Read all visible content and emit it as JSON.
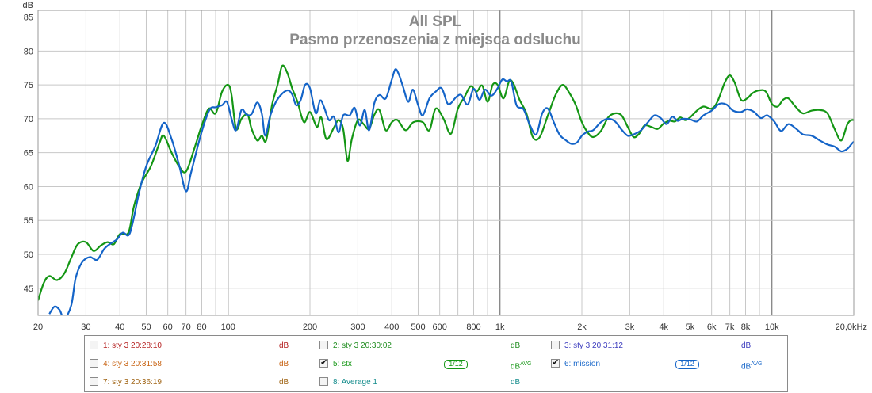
{
  "chart_data": {
    "type": "line",
    "title": "All SPL",
    "subtitle": "Pasmo przenoszenia z miejsca odsluchu",
    "ylabel": "dB",
    "xlabel": "",
    "x_scale": "log",
    "xlim": [
      20,
      20000
    ],
    "ylim": [
      41,
      86
    ],
    "grid": true,
    "x_ticks": [
      20,
      30,
      40,
      50,
      60,
      70,
      80,
      100,
      200,
      300,
      400,
      500,
      600,
      800,
      1000,
      2000,
      3000,
      4000,
      5000,
      6000,
      7000,
      8000,
      10000,
      20000
    ],
    "x_tick_labels": [
      "20",
      "30",
      "40",
      "50",
      "60",
      "70",
      "80",
      "100",
      "200",
      "300",
      "400",
      "500",
      "600",
      "800",
      "1k",
      "2k",
      "3k",
      "4k",
      "5k",
      "6k",
      "7k",
      "8k",
      "10k",
      "20,0kHz"
    ],
    "y_ticks": [
      45,
      50,
      55,
      60,
      65,
      70,
      75,
      80,
      85
    ],
    "y_tick_labels": [
      "45",
      "50",
      "55",
      "60",
      "65",
      "70",
      "75",
      "80",
      "85"
    ],
    "series": [
      {
        "name": "5: stx",
        "color": "#149614",
        "points": [
          [
            20,
            43.2
          ],
          [
            21,
            45.8
          ],
          [
            22,
            46.8
          ],
          [
            23.5,
            46.2
          ],
          [
            25,
            47.2
          ],
          [
            26.5,
            49.5
          ],
          [
            28,
            51.5
          ],
          [
            30,
            51.8
          ],
          [
            32,
            50.5
          ],
          [
            34,
            51.3
          ],
          [
            36,
            51.8
          ],
          [
            38,
            51.5
          ],
          [
            40,
            53
          ],
          [
            43,
            53.2
          ],
          [
            45,
            57
          ],
          [
            48,
            60.5
          ],
          [
            52,
            63
          ],
          [
            56,
            66.5
          ],
          [
            58,
            67.5
          ],
          [
            62,
            65
          ],
          [
            66,
            63
          ],
          [
            70,
            62.2
          ],
          [
            75,
            65.5
          ],
          [
            80,
            69
          ],
          [
            85,
            71.5
          ],
          [
            90,
            70.8
          ],
          [
            95,
            74
          ],
          [
            100,
            75
          ],
          [
            103,
            73.5
          ],
          [
            107,
            68.5
          ],
          [
            112,
            70
          ],
          [
            118,
            70.6
          ],
          [
            122,
            68.5
          ],
          [
            128,
            66.8
          ],
          [
            133,
            67.5
          ],
          [
            138,
            66.8
          ],
          [
            145,
            72
          ],
          [
            152,
            75
          ],
          [
            158,
            77.8
          ],
          [
            165,
            76.8
          ],
          [
            172,
            74.5
          ],
          [
            180,
            72.5
          ],
          [
            190,
            69.5
          ],
          [
            200,
            71
          ],
          [
            212,
            68.8
          ],
          [
            220,
            70.2
          ],
          [
            230,
            67
          ],
          [
            245,
            68.7
          ],
          [
            255,
            69.8
          ],
          [
            265,
            68.5
          ],
          [
            275,
            63.8
          ],
          [
            285,
            67
          ],
          [
            300,
            69.8
          ],
          [
            315,
            69.2
          ],
          [
            330,
            68.5
          ],
          [
            345,
            70.6
          ],
          [
            360,
            71.3
          ],
          [
            380,
            68.3
          ],
          [
            400,
            69.5
          ],
          [
            420,
            69.8
          ],
          [
            450,
            68.3
          ],
          [
            480,
            69.5
          ],
          [
            520,
            69.5
          ],
          [
            550,
            68.3
          ],
          [
            580,
            71.5
          ],
          [
            620,
            70
          ],
          [
            660,
            67.8
          ],
          [
            700,
            71.5
          ],
          [
            740,
            73.2
          ],
          [
            780,
            74.8
          ],
          [
            820,
            74
          ],
          [
            860,
            74.9
          ],
          [
            900,
            72.5
          ],
          [
            940,
            75
          ],
          [
            980,
            75
          ],
          [
            1030,
            73
          ],
          [
            1080,
            75.5
          ],
          [
            1120,
            75.2
          ],
          [
            1180,
            72.8
          ],
          [
            1250,
            70.8
          ],
          [
            1320,
            67.3
          ],
          [
            1400,
            67.3
          ],
          [
            1500,
            70.5
          ],
          [
            1600,
            73.5
          ],
          [
            1700,
            75
          ],
          [
            1800,
            73.8
          ],
          [
            1900,
            72
          ],
          [
            2000,
            69.5
          ],
          [
            2100,
            68
          ],
          [
            2200,
            67.3
          ],
          [
            2350,
            68.2
          ],
          [
            2500,
            70.2
          ],
          [
            2650,
            70.8
          ],
          [
            2800,
            70.5
          ],
          [
            2950,
            68.8
          ],
          [
            3100,
            67.3
          ],
          [
            3250,
            67.8
          ],
          [
            3400,
            69
          ],
          [
            3600,
            68.8
          ],
          [
            3800,
            68.5
          ],
          [
            4000,
            69.3
          ],
          [
            4200,
            69.7
          ],
          [
            4400,
            69.6
          ],
          [
            4600,
            70.2
          ],
          [
            4800,
            69.8
          ],
          [
            5000,
            70.2
          ],
          [
            5300,
            71.2
          ],
          [
            5600,
            71.8
          ],
          [
            6000,
            71.5
          ],
          [
            6300,
            72.5
          ],
          [
            6700,
            75.3
          ],
          [
            7000,
            76.4
          ],
          [
            7300,
            75.3
          ],
          [
            7700,
            72.8
          ],
          [
            8100,
            73
          ],
          [
            8500,
            73.8
          ],
          [
            9000,
            74.2
          ],
          [
            9500,
            74
          ],
          [
            10000,
            72.2
          ],
          [
            10500,
            71.8
          ],
          [
            11000,
            72.8
          ],
          [
            11500,
            73
          ],
          [
            12200,
            71.8
          ],
          [
            13000,
            70.8
          ],
          [
            14000,
            71.2
          ],
          [
            15000,
            71.3
          ],
          [
            16000,
            70.8
          ],
          [
            17000,
            68.5
          ],
          [
            18000,
            66.8
          ],
          [
            19000,
            69.3
          ],
          [
            20000,
            69.8
          ],
          [
            21000,
            68.8
          ]
        ]
      },
      {
        "name": "6: mission",
        "color": "#1464c8",
        "points": [
          [
            22,
            41.2
          ],
          [
            23,
            42.3
          ],
          [
            24,
            41.8
          ],
          [
            25,
            40.5
          ],
          [
            26.5,
            42.5
          ],
          [
            27.5,
            46.5
          ],
          [
            29,
            48.8
          ],
          [
            31,
            49.6
          ],
          [
            33,
            49.2
          ],
          [
            35,
            50.8
          ],
          [
            37,
            51.6
          ],
          [
            39,
            52.2
          ],
          [
            41,
            53.2
          ],
          [
            43,
            52.8
          ],
          [
            44.5,
            54.5
          ],
          [
            47,
            59
          ],
          [
            50,
            63
          ],
          [
            54,
            66
          ],
          [
            58,
            69.4
          ],
          [
            62,
            67
          ],
          [
            66,
            63.2
          ],
          [
            70,
            59.3
          ],
          [
            73,
            62
          ],
          [
            78,
            66.5
          ],
          [
            82,
            69.5
          ],
          [
            86,
            71.5
          ],
          [
            90,
            71.7
          ],
          [
            95,
            72
          ],
          [
            99,
            72.5
          ],
          [
            103,
            70
          ],
          [
            107,
            68.3
          ],
          [
            112,
            71.3
          ],
          [
            117,
            70.6
          ],
          [
            122,
            70.7
          ],
          [
            128,
            72.4
          ],
          [
            133,
            70.8
          ],
          [
            137,
            67.5
          ],
          [
            143,
            70.5
          ],
          [
            150,
            72.5
          ],
          [
            158,
            73.7
          ],
          [
            166,
            74.2
          ],
          [
            172,
            73.6
          ],
          [
            178,
            72
          ],
          [
            185,
            72.8
          ],
          [
            192,
            75
          ],
          [
            200,
            74.5
          ],
          [
            210,
            70.8
          ],
          [
            218,
            72.7
          ],
          [
            225,
            71.8
          ],
          [
            235,
            69.8
          ],
          [
            245,
            70.3
          ],
          [
            255,
            68
          ],
          [
            265,
            70.5
          ],
          [
            280,
            70.5
          ],
          [
            292,
            71.6
          ],
          [
            305,
            69
          ],
          [
            318,
            71.3
          ],
          [
            330,
            68.3
          ],
          [
            345,
            72.3
          ],
          [
            360,
            73.5
          ],
          [
            380,
            73
          ],
          [
            400,
            75.8
          ],
          [
            412,
            77.3
          ],
          [
            425,
            76.5
          ],
          [
            440,
            74.7
          ],
          [
            460,
            72.5
          ],
          [
            478,
            74.3
          ],
          [
            500,
            72
          ],
          [
            520,
            70.5
          ],
          [
            550,
            73
          ],
          [
            580,
            74
          ],
          [
            610,
            74.5
          ],
          [
            640,
            72.3
          ],
          [
            660,
            72.3
          ],
          [
            690,
            73.2
          ],
          [
            720,
            73.5
          ],
          [
            760,
            72.1
          ],
          [
            800,
            74.4
          ],
          [
            840,
            72.8
          ],
          [
            880,
            74.3
          ],
          [
            930,
            73.4
          ],
          [
            980,
            74.5
          ],
          [
            1020,
            75.8
          ],
          [
            1060,
            75.5
          ],
          [
            1100,
            75.5
          ],
          [
            1150,
            72
          ],
          [
            1220,
            71.4
          ],
          [
            1290,
            69
          ],
          [
            1360,
            67.7
          ],
          [
            1430,
            70.8
          ],
          [
            1500,
            71.5
          ],
          [
            1580,
            69.4
          ],
          [
            1660,
            67.6
          ],
          [
            1750,
            66.8
          ],
          [
            1830,
            66.3
          ],
          [
            1920,
            66.5
          ],
          [
            2000,
            67.5
          ],
          [
            2100,
            68.1
          ],
          [
            2200,
            68.3
          ],
          [
            2350,
            69.5
          ],
          [
            2500,
            70
          ],
          [
            2650,
            69.6
          ],
          [
            2800,
            68.4
          ],
          [
            2950,
            67.5
          ],
          [
            3100,
            67.7
          ],
          [
            3300,
            68.3
          ],
          [
            3500,
            69.5
          ],
          [
            3700,
            70.5
          ],
          [
            3900,
            70.1
          ],
          [
            4100,
            69.2
          ],
          [
            4300,
            70.3
          ],
          [
            4500,
            69.7
          ],
          [
            4700,
            70
          ],
          [
            5000,
            69.9
          ],
          [
            5300,
            69.6
          ],
          [
            5600,
            70.5
          ],
          [
            6000,
            71.2
          ],
          [
            6400,
            72.2
          ],
          [
            6800,
            72.1
          ],
          [
            7200,
            71.2
          ],
          [
            7700,
            71
          ],
          [
            8100,
            71.4
          ],
          [
            8600,
            71
          ],
          [
            9100,
            70.1
          ],
          [
            9600,
            70.5
          ],
          [
            10200,
            69.6
          ],
          [
            10800,
            68.2
          ],
          [
            11500,
            69.2
          ],
          [
            12300,
            68.5
          ],
          [
            13000,
            67.7
          ],
          [
            14000,
            67.5
          ],
          [
            15000,
            66.8
          ],
          [
            16000,
            66.2
          ],
          [
            17000,
            65.9
          ],
          [
            18000,
            65.2
          ],
          [
            19000,
            65.6
          ],
          [
            20000,
            66.6
          ],
          [
            21000,
            66.5
          ]
        ]
      }
    ],
    "legend": [
      [
        {
          "label": "1: sty 3 20:28:10",
          "color": "#b41e1e",
          "checked": false,
          "unit": "dB",
          "avg": ""
        },
        {
          "label": "2: sty 3 20:30:02",
          "color": "#1e8c1e",
          "checked": false,
          "unit": "dB",
          "avg": ""
        },
        {
          "label": "3: sty 3 20:31:12",
          "color": "#3c3cbe",
          "checked": false,
          "unit": "dB",
          "avg": ""
        }
      ],
      [
        {
          "label": "4: sty 3 20:31:58",
          "color": "#c86414",
          "checked": false,
          "unit": "dB",
          "avg": ""
        },
        {
          "label": "5: stx",
          "color": "#149614",
          "checked": true,
          "unit": "dB",
          "avg": "AVG",
          "smoothing": "1/12"
        },
        {
          "label": "6: mission",
          "color": "#1464c8",
          "checked": true,
          "unit": "dB",
          "avg": "AVG",
          "smoothing": "1/12"
        }
      ],
      [
        {
          "label": "7: sty 3 20:36:19",
          "color": "#a06414",
          "checked": false,
          "unit": "dB",
          "avg": ""
        },
        {
          "label": "8: Average 1",
          "color": "#148c8c",
          "checked": false,
          "unit": "dB",
          "avg": ""
        }
      ]
    ]
  }
}
